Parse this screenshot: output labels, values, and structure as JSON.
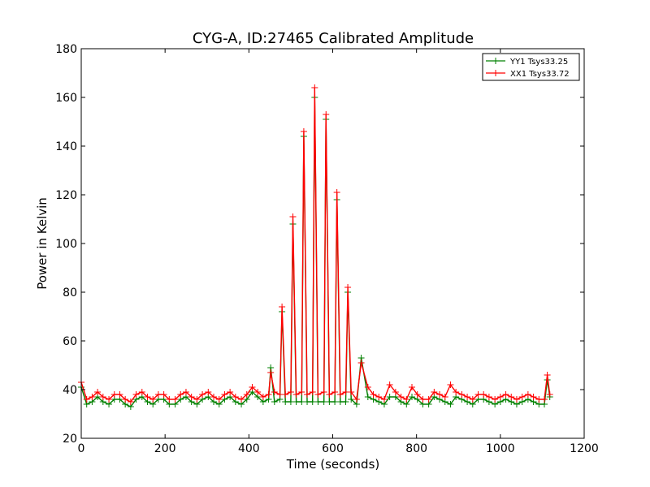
{
  "chart_data": {
    "type": "line",
    "title": "CYG-A, ID:27465 Calibrated Amplitude",
    "xlabel": "Time (seconds)",
    "ylabel": "Power in Kelvin",
    "xlim": [
      0,
      1200
    ],
    "ylim": [
      20,
      180
    ],
    "xticks": [
      0,
      200,
      400,
      600,
      800,
      1000,
      1200
    ],
    "yticks": [
      20,
      40,
      60,
      80,
      100,
      120,
      140,
      160,
      180
    ],
    "grid": false,
    "legend_position": "top-right",
    "marker": "plus",
    "series": [
      {
        "name": "YY1 Tsys33.25",
        "color": "#008000",
        "x": [
          0,
          13,
          26,
          39,
          52,
          66,
          79,
          92,
          105,
          118,
          131,
          145,
          158,
          171,
          184,
          197,
          210,
          224,
          237,
          250,
          263,
          276,
          289,
          303,
          316,
          329,
          342,
          355,
          368,
          382,
          395,
          408,
          421,
          434,
          447,
          452,
          461,
          474,
          479,
          487,
          500,
          505,
          513,
          526,
          531,
          539,
          552,
          557,
          565,
          579,
          584,
          592,
          605,
          610,
          618,
          631,
          636,
          644,
          657,
          668,
          684,
          697,
          710,
          723,
          736,
          750,
          763,
          776,
          789,
          802,
          815,
          829,
          842,
          855,
          868,
          881,
          894,
          908,
          921,
          934,
          947,
          960,
          973,
          987,
          1000,
          1013,
          1026,
          1039,
          1052,
          1066,
          1079,
          1092,
          1105,
          1112,
          1118
        ],
        "y": [
          41,
          34,
          35,
          37,
          35,
          34,
          36,
          36,
          34,
          33,
          36,
          37,
          35,
          34,
          36,
          36,
          34,
          34,
          36,
          37,
          35,
          34,
          36,
          37,
          35,
          34,
          36,
          37,
          35,
          34,
          36,
          39,
          37,
          35,
          36,
          49,
          35,
          36,
          72,
          35,
          35,
          108,
          35,
          35,
          144,
          35,
          35,
          160,
          35,
          35,
          151,
          35,
          35,
          118,
          35,
          35,
          80,
          36,
          34,
          53,
          37,
          36,
          35,
          34,
          37,
          37,
          35,
          34,
          37,
          36,
          34,
          34,
          37,
          36,
          35,
          34,
          37,
          36,
          35,
          34,
          36,
          36,
          35,
          34,
          35,
          36,
          35,
          34,
          35,
          36,
          35,
          34,
          34,
          44,
          37
        ]
      },
      {
        "name": "XX1 Tsys33.72",
        "color": "#ff0000",
        "x": [
          0,
          13,
          26,
          39,
          52,
          66,
          79,
          92,
          105,
          118,
          131,
          145,
          158,
          171,
          184,
          197,
          210,
          224,
          237,
          250,
          263,
          276,
          289,
          303,
          316,
          329,
          342,
          355,
          368,
          382,
          395,
          408,
          421,
          434,
          447,
          452,
          461,
          474,
          479,
          487,
          500,
          505,
          513,
          526,
          531,
          539,
          552,
          557,
          565,
          579,
          584,
          592,
          605,
          610,
          618,
          631,
          636,
          644,
          657,
          668,
          684,
          697,
          710,
          723,
          736,
          750,
          763,
          776,
          789,
          802,
          815,
          829,
          842,
          855,
          868,
          881,
          894,
          908,
          921,
          934,
          947,
          960,
          973,
          987,
          1000,
          1013,
          1026,
          1039,
          1052,
          1066,
          1079,
          1092,
          1105,
          1112,
          1118
        ],
        "y": [
          43,
          36,
          37,
          39,
          37,
          36,
          38,
          38,
          36,
          35,
          38,
          39,
          37,
          36,
          38,
          38,
          36,
          36,
          38,
          39,
          37,
          36,
          38,
          39,
          37,
          36,
          38,
          39,
          37,
          36,
          38,
          41,
          39,
          37,
          38,
          47,
          39,
          38,
          74,
          38,
          39,
          111,
          38,
          39,
          146,
          38,
          39,
          164,
          38,
          39,
          153,
          38,
          39,
          121,
          38,
          39,
          82,
          39,
          36,
          51,
          41,
          38,
          37,
          36,
          42,
          39,
          37,
          36,
          41,
          38,
          36,
          36,
          39,
          38,
          37,
          42,
          39,
          38,
          37,
          36,
          38,
          38,
          37,
          36,
          37,
          38,
          37,
          36,
          37,
          38,
          37,
          36,
          36,
          46,
          38
        ]
      }
    ]
  }
}
